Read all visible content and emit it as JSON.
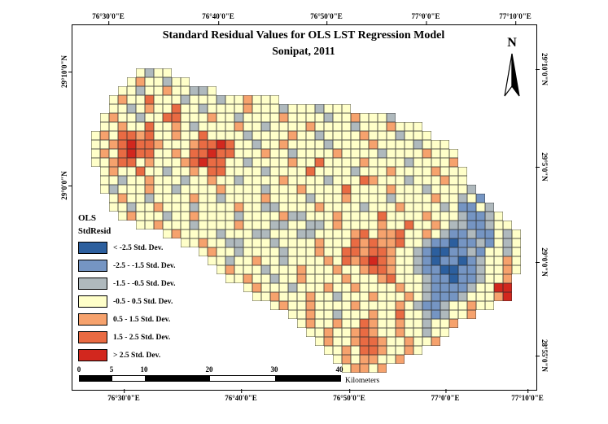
{
  "figure": {
    "title_line1": "Standard Residual Values for OLS LST Regression Model",
    "title_line2": "Sonipat, 2011",
    "north_label": "N"
  },
  "axes": {
    "top": [
      "76°30'0\"E",
      "76°40'0\"E",
      "76°50'0\"E",
      "77°0'0\"E",
      "77°10'0\"E"
    ],
    "bottom": [
      "76°30'0\"E",
      "76°40'0\"E",
      "76°50'0\"E",
      "77°0'0\"E",
      "77°10'0\"E"
    ],
    "left": [
      "29°10'0\"N",
      "29°0'0\"N"
    ],
    "right": [
      "29°10'0\"N",
      "29°5'0\"N",
      "29°0'0\"N",
      "28°55'0\"N"
    ]
  },
  "legend": {
    "group_title": "OLS",
    "subtitle": "StdResid",
    "items": [
      {
        "key": "N",
        "label": "< -2.5 Std. Dev.",
        "color": "#2C5F9E"
      },
      {
        "key": "B",
        "label": "-2.5 - -1.5 Std. Dev.",
        "color": "#7595C3"
      },
      {
        "key": "G",
        "label": "-1.5 - -0.5 Std. Dev.",
        "color": "#AFB9BD"
      },
      {
        "key": "Y",
        "label": "-0.5 - 0.5 Std. Dev.",
        "color": "#FFFFC9"
      },
      {
        "key": "O",
        "label": "0.5 - 1.5 Std. Dev.",
        "color": "#F6A26D"
      },
      {
        "key": "R",
        "label": "1.5 - 2.5 Std. Dev.",
        "color": "#E96B43"
      },
      {
        "key": "D",
        "label": "> 2.5 Std. Dev.",
        "color": "#D2271E"
      }
    ]
  },
  "scalebar": {
    "ticks": [
      "0",
      "5",
      "10",
      "20",
      "30",
      "40"
    ],
    "unit": "Kilometers"
  },
  "map": {
    "cols": 48,
    "cell": 11,
    "palette": {
      "N": "#2C5F9E",
      "B": "#7595C3",
      "G": "#AFB9BD",
      "Y": "#FFFFC9",
      "O": "#F6A26D",
      "R": "#E96B43",
      "D": "#D2271E"
    },
    "rows": [
      ".....YGYY.......................................",
      "....YOYYGYY.....................................",
      "...YYGYYOYYGGY..................................",
      "..YOYYRYYYGYYYGYYOYYY...........................",
      "..YYGYOYYRYYGYYYYOYYYGYYYGYYY...................",
      ".YOYYGYYRRYYYOYYGYYYYOYYYYGYYOYYYG..............",
      ".YYOYYRYYOYGYYYYOYYGYYYYOYYYYGYYYOYYY...........",
      "YOYRRORYYOYYRYYYYGYYYYOYYGYYYYOYYYGYYY..........",
      "YYORDRROYYYORRDRYYGYYOYYYYGYYYYOYYYYGYYY........",
      "YOYRDRRYYOYRRDRRYYYOYYGYYYYOYYYYGYYYYOYYY.......",
      "YYORRYOYYYORDRRYYGYYYYOYYRYYYYOYYYYGYYYYO.......",
      ".YOYYRYYGYYOYRRYYYYGYYYYRYYYYGYYYOYYYYOYYY......",
      ".YYGYYOYYYGYYOYYGYYYYOYYYYGYYYROYYYGYYYOYY......",
      ".YGYYYOYYGYYYYOYYYYGYYYOYYYYRYYYYOYYYGYYYYG.....",
      "..YOYYGYYYYOYYGYYYYOYYYYGYYYOYYYYGYYYYOYYGYB....",
      "..YYGYYOYYYGYYYYOYYGGYYYYOYYYYGYYYOYYYYGYBBYG...",
      "...YOYYYGYYOYYYYGYYYYOGGYYYOYYYYRYYYYOYYYGBBGY..",
      ".....YYOYYYGYYYYOYYYGGYYGGYOYYYYOYYRYYOYGGBBGYY.",
      "........YOYYYYGYYYGGYYYGGYYYYORYOORYYOYGBBGBBYGY",
      "..........YYOYYGGYYYGYYYYOYYYROROORYYGBBNBBGBYGY",
      "............YOYYGYYYYGYYYOYYRRORROYYGBNNBBGBYYGY",
      ".............YYGYYOYYGYYYYOYRORDROYYGBNBBNBGYYOY",
      "..............YOYYYGYYYOYYYOYYORROYYGBBNNBBGYYOY",
      "...............YYOYYGYYOYYYYOYYYORYYYGBBNBBGYYO.",
      ".................YOYYYGYYYOYYOYYYYOYYGBBBBGYYDD.",
      "..................YYOYYYOYYGYYYOYYYOYGBBBGYYYOD.",
      "....................YOYYOYYYYOYYYYOYGBBGYYOYY...",
      "......................YYOYYGYYYOYYRYYGBGYYO.....",
      ".......................YOYYOYYROYYOYYGYYO.......",
      "........................YYOYYOROYYOYYGYY........",
      ".........................YOYYORROYYOYYO.........",
      "..........................YYOYRROYYOY...........",
      "...........................YOYOOYYO.............",
      "............................YOOYO..............."
    ]
  }
}
